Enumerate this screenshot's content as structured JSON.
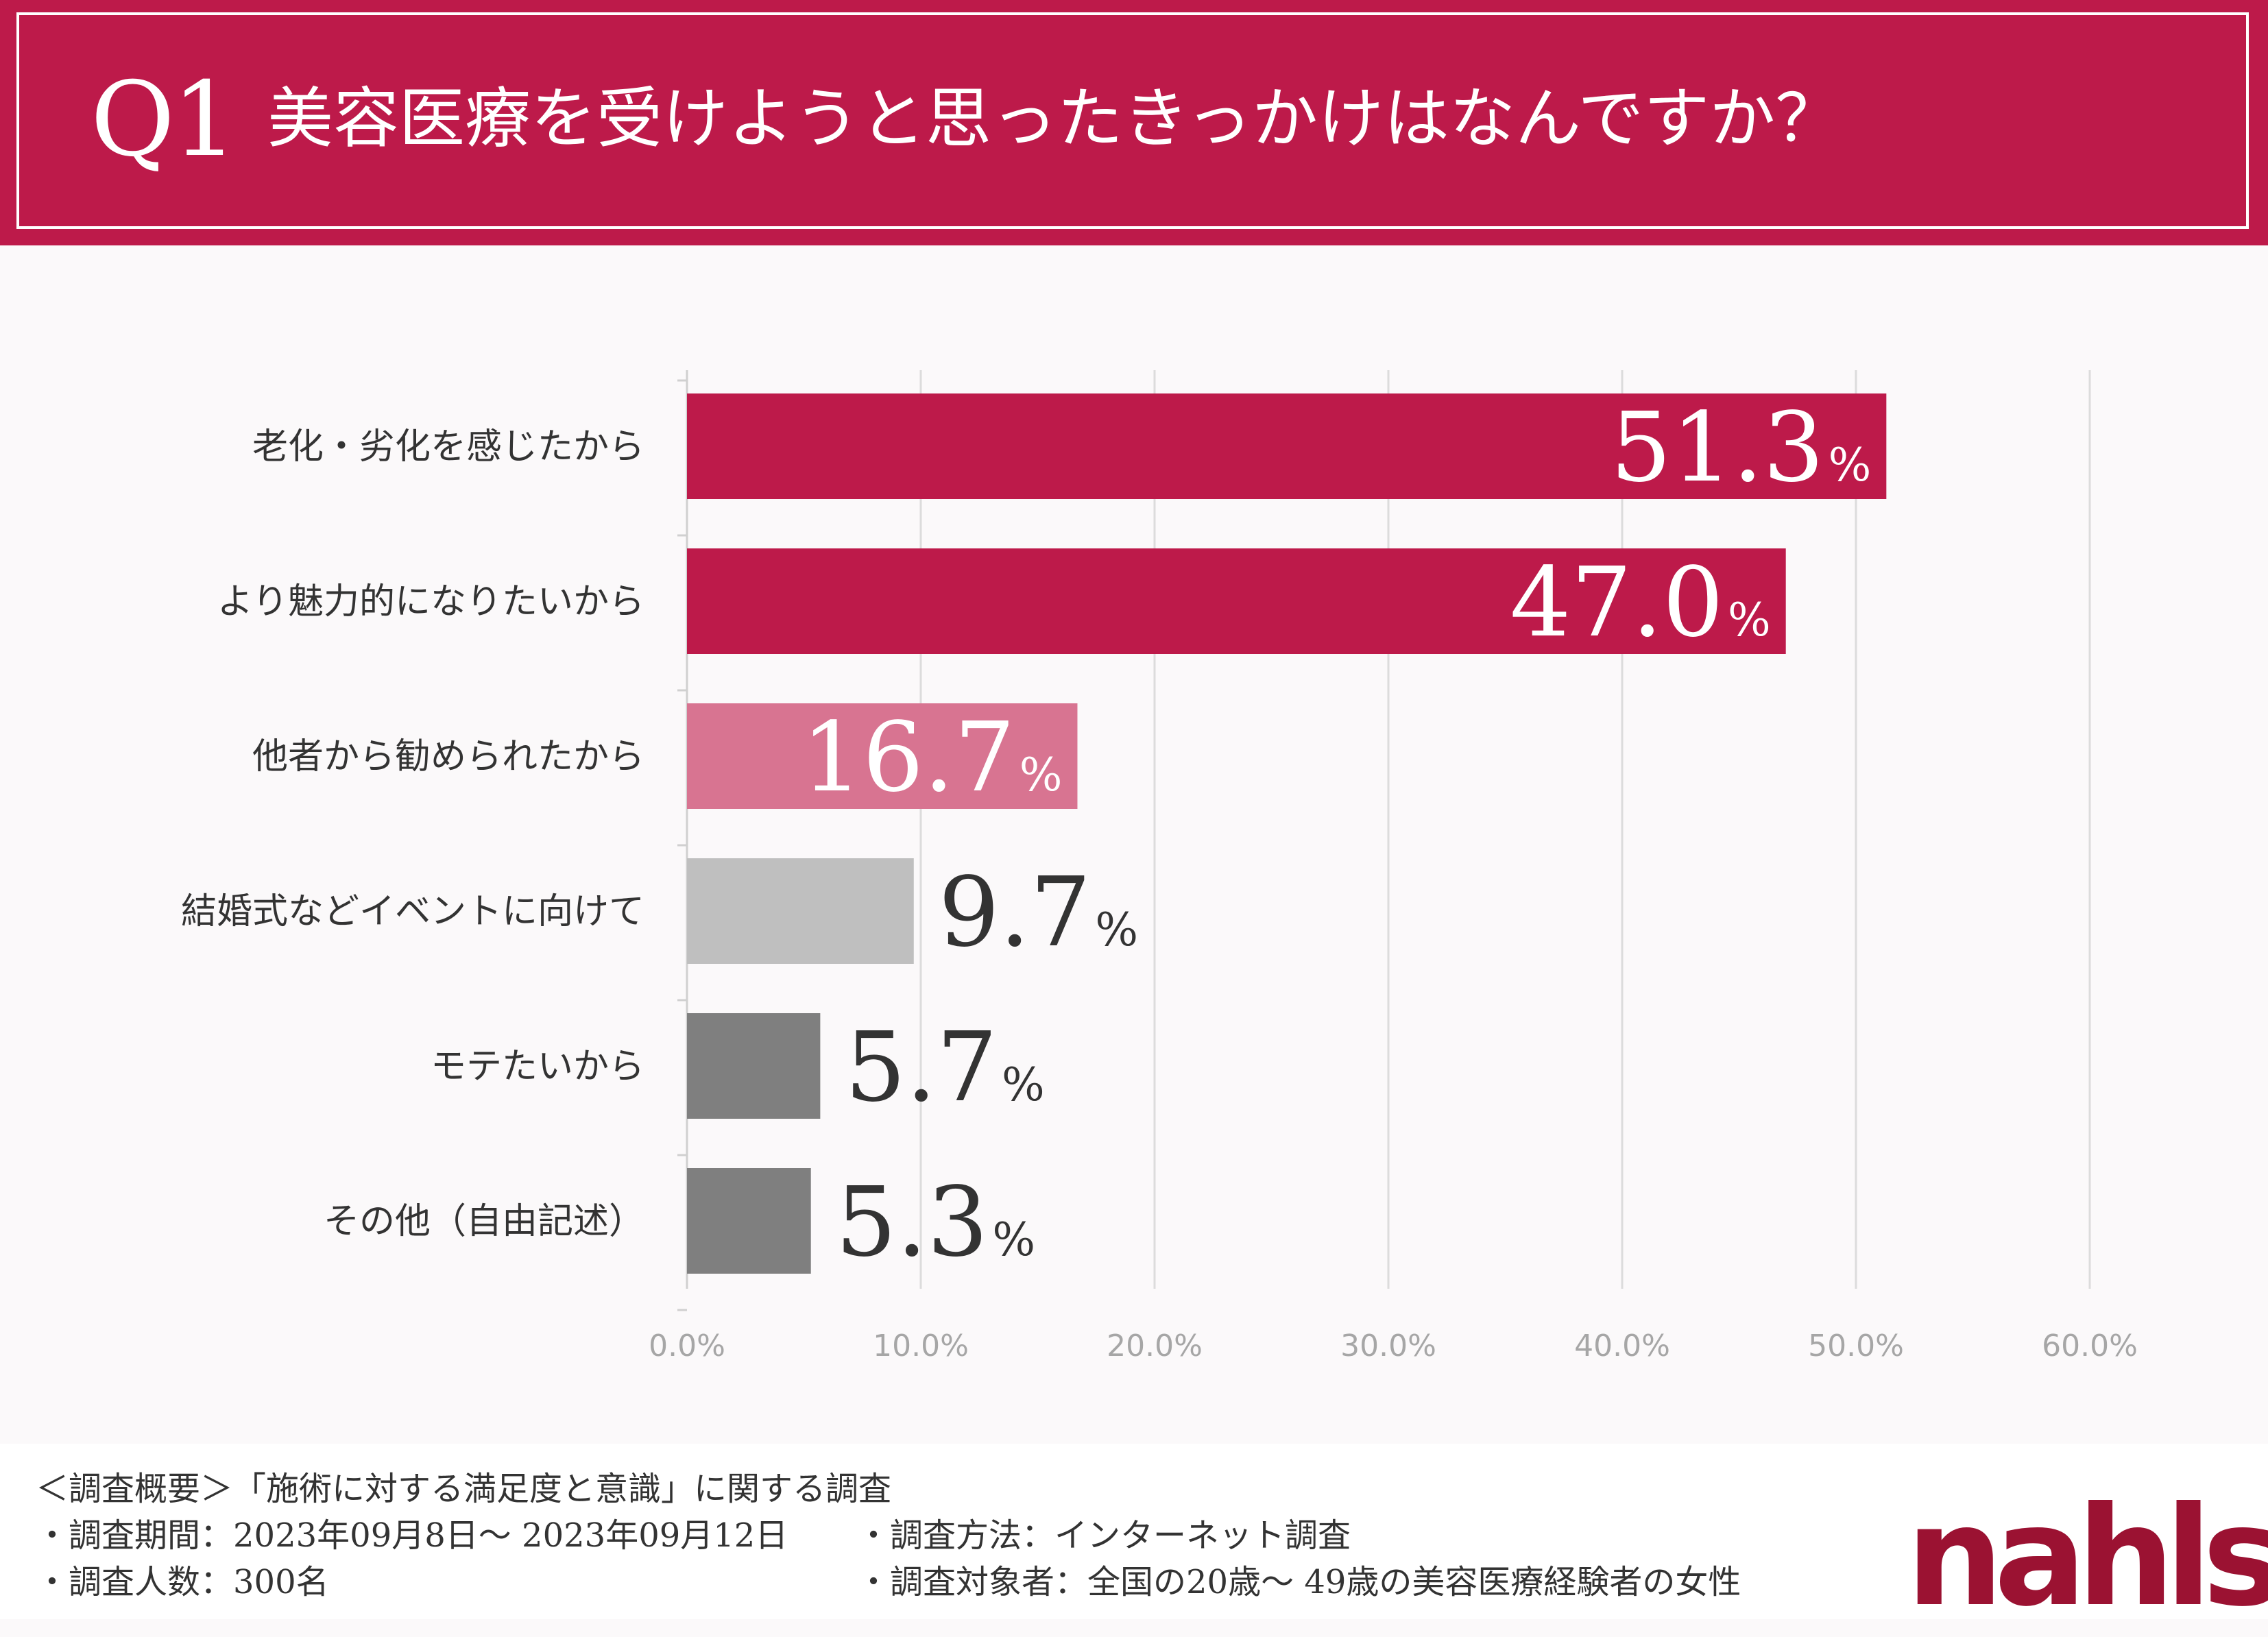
{
  "header": {
    "question_number": "Q1",
    "question_text": "美容医療を受けようと思ったきっかけはなんですか？"
  },
  "colors": {
    "header_bg": "#bd1a4a",
    "bar_primary": "#bd1a4a",
    "bar_secondary": "#d87491",
    "bar_light_gray": "#bfbfbf",
    "bar_dark_gray": "#7f7f7f",
    "logo": "#9b1232"
  },
  "chart_data": {
    "type": "bar",
    "orientation": "horizontal",
    "title": "美容医療を受けようと思ったきっかけはなんですか？",
    "categories": [
      "老化・劣化を感じたから",
      "より魅力的になりたいから",
      "他者から勧められたから",
      "結婚式などイベントに向けて",
      "モテたいから",
      "その他（自由記述）"
    ],
    "values": [
      51.3,
      47.0,
      16.7,
      9.7,
      5.7,
      5.3
    ],
    "value_labels": [
      "51.3",
      "47.0",
      "16.7",
      "9.7",
      "5.7",
      "5.3"
    ],
    "unit_label": "%",
    "bar_colors": [
      "#bd1a4a",
      "#bd1a4a",
      "#d87491",
      "#bfbfbf",
      "#7f7f7f",
      "#7f7f7f"
    ],
    "label_inside": [
      true,
      true,
      true,
      false,
      false,
      false
    ],
    "xlim": [
      0,
      60
    ],
    "xticks": [
      0,
      10,
      20,
      30,
      40,
      50,
      60
    ],
    "xtick_labels": [
      "0.0%",
      "10.0%",
      "20.0%",
      "30.0%",
      "40.0%",
      "50.0%",
      "60.0%"
    ],
    "grid": true,
    "xlabel": "",
    "ylabel": ""
  },
  "footer": {
    "summary": "＜調査概要＞「施術に対する満足度と意識」に関する調査",
    "period": "・調査期間：2023年09月8日〜 2023年09月12日",
    "count": "・調査人数：300名",
    "method": "・調査方法：インターネット調査",
    "target": "・調査対象者：全国の20歳〜 49歳の美容医療経験者の女性",
    "logo_text": "nahls"
  }
}
